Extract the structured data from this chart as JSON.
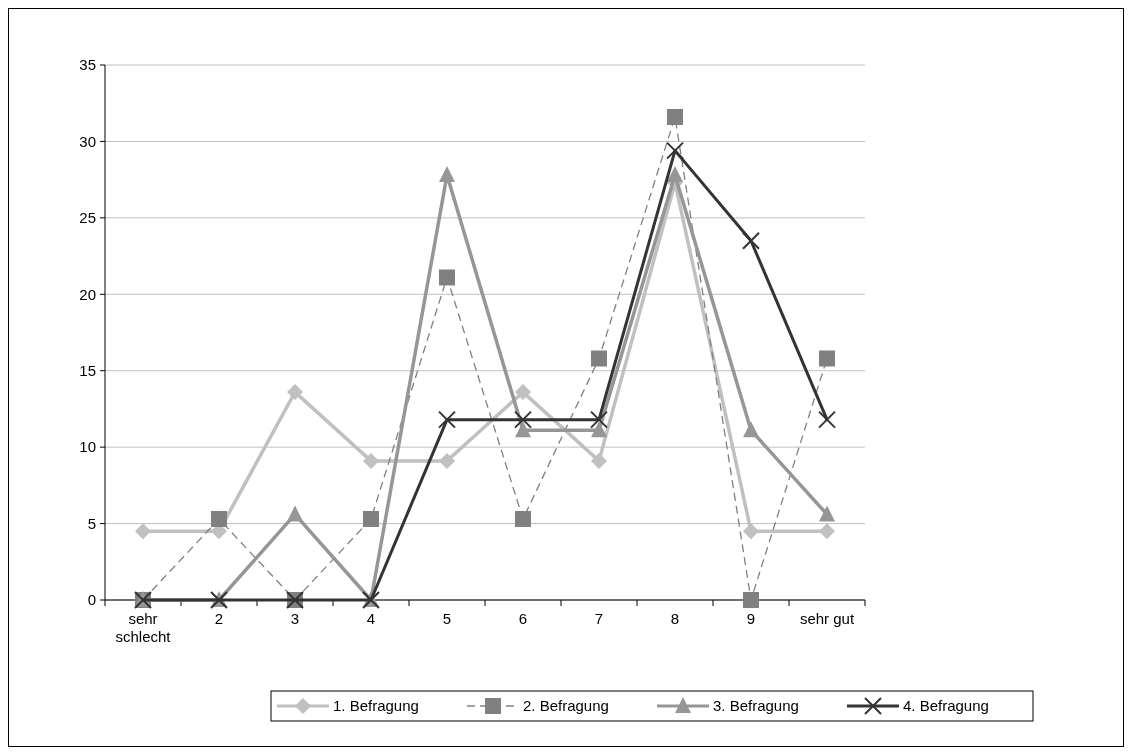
{
  "chart_data": {
    "type": "line",
    "categories": [
      "sehr schlecht",
      "2",
      "3",
      "4",
      "5",
      "6",
      "7",
      "8",
      "9",
      "sehr gut"
    ],
    "ylim": [
      0,
      35
    ],
    "yticks": [
      0,
      5,
      10,
      15,
      20,
      25,
      30,
      35
    ],
    "grid": "y",
    "legend": "bottom",
    "series": [
      {
        "name": "1. Befragung",
        "color": "#c0c0c0",
        "marker": "diamond",
        "line_style": "solid",
        "values": [
          4.5,
          4.5,
          13.6,
          9.1,
          9.1,
          13.6,
          9.1,
          27.3,
          4.5,
          4.5
        ]
      },
      {
        "name": "2. Befragung",
        "color": "#808080",
        "marker": "square",
        "line_style": "dashed",
        "values": [
          0,
          5.3,
          0,
          5.3,
          21.1,
          5.3,
          15.8,
          31.6,
          0,
          15.8
        ]
      },
      {
        "name": "3. Befragung",
        "color": "#969696",
        "marker": "triangle",
        "line_style": "solid",
        "values": [
          0,
          0,
          5.6,
          0,
          27.8,
          11.1,
          11.1,
          27.8,
          11.1,
          5.6
        ]
      },
      {
        "name": "4. Befragung",
        "color": "#333333",
        "marker": "cross",
        "line_style": "solid",
        "values": [
          0,
          0,
          0,
          0,
          11.8,
          11.8,
          11.8,
          29.4,
          23.5,
          11.8
        ]
      }
    ]
  }
}
